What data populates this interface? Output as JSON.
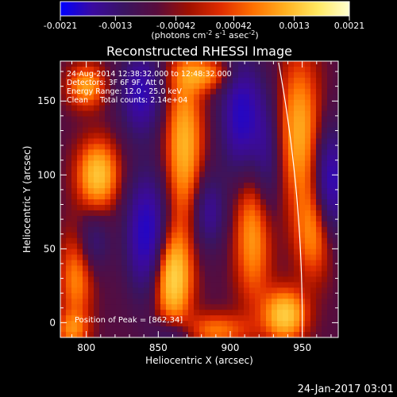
{
  "chart_data": {
    "type": "heatmap",
    "title": "Reconstructed RHESSI Image",
    "xlabel": "Heliocentric X (arcsec)",
    "ylabel": "Heliocentric Y (arcsec)",
    "xlim": [
      782,
      975
    ],
    "ylim": [
      -10,
      177
    ],
    "x_ticks": [
      "800",
      "850",
      "900",
      "950"
    ],
    "y_ticks": [
      "0",
      "50",
      "100",
      "150"
    ],
    "x_tick_values": [
      800,
      850,
      900,
      950
    ],
    "y_tick_values": [
      0,
      50,
      100,
      150
    ],
    "colorbar": {
      "ticks": [
        "-0.0021",
        "-0.0013",
        "-0.00042",
        "0.00042",
        "0.0013",
        "0.0021"
      ],
      "tick_values": [
        -0.0021,
        -0.0013,
        -0.00042,
        0.00042,
        0.0013,
        0.0021
      ],
      "range": [
        -0.0021,
        0.0021
      ],
      "units_label": "(photons cm",
      "units_exp1": "-2",
      "units_mid": " s",
      "units_exp2": "-1",
      "units_tail": " asec",
      "units_exp3": "-2",
      "units_close": ")"
    },
    "info_lines": [
      "24-Aug-2014 12:38:32.000 to 12:48:32.000",
      "Detectors: 3F 6F 9F, Att 0",
      "Energy Range: 12.0 - 25.0 keV",
      "Clean     Total counts: 2.14e+04"
    ],
    "peak_text": "Position of Peak = [862,34]",
    "limb_color": "#ffffff",
    "colormap": [
      "#0000ff",
      "#3a0aa0",
      "#3a1460",
      "#580c3c",
      "#a01000",
      "#e02c00",
      "#ff7000",
      "#ffb020",
      "#ffe860",
      "#ffffd0"
    ],
    "blobs": [
      {
        "x": 860,
        "y": 30,
        "sx": 9,
        "sy": 22,
        "a": 1.0
      },
      {
        "x": 868,
        "y": 120,
        "sx": 9,
        "sy": 36,
        "a": 0.75
      },
      {
        "x": 882,
        "y": 168,
        "sx": 14,
        "sy": 8,
        "a": 0.55
      },
      {
        "x": 808,
        "y": 100,
        "sx": 10,
        "sy": 16,
        "a": 0.85
      },
      {
        "x": 800,
        "y": 160,
        "sx": 9,
        "sy": 10,
        "a": 0.65
      },
      {
        "x": 793,
        "y": 30,
        "sx": 8,
        "sy": 22,
        "a": 0.55
      },
      {
        "x": 790,
        "y": -5,
        "sx": 8,
        "sy": 8,
        "a": 0.45
      },
      {
        "x": 916,
        "y": 60,
        "sx": 9,
        "sy": 32,
        "a": 0.65
      },
      {
        "x": 938,
        "y": 5,
        "sx": 10,
        "sy": 12,
        "a": 0.9
      },
      {
        "x": 948,
        "y": 130,
        "sx": 10,
        "sy": 35,
        "a": 0.7
      },
      {
        "x": 958,
        "y": 60,
        "sx": 9,
        "sy": 22,
        "a": 0.55
      },
      {
        "x": 890,
        "y": -5,
        "sx": 16,
        "sy": 8,
        "a": 0.5
      },
      {
        "x": 838,
        "y": 155,
        "sx": 10,
        "sy": 20,
        "a": -0.75
      },
      {
        "x": 842,
        "y": 60,
        "sx": 10,
        "sy": 28,
        "a": -0.9
      },
      {
        "x": 908,
        "y": 140,
        "sx": 10,
        "sy": 28,
        "a": -0.85
      },
      {
        "x": 885,
        "y": 75,
        "sx": 8,
        "sy": 18,
        "a": -0.55
      },
      {
        "x": 925,
        "y": 110,
        "sx": 7,
        "sy": 30,
        "a": -0.45
      },
      {
        "x": 970,
        "y": 95,
        "sx": 8,
        "sy": 25,
        "a": -0.8
      },
      {
        "x": 805,
        "y": 55,
        "sx": 8,
        "sy": 14,
        "a": -0.4
      },
      {
        "x": 860,
        "y": -8,
        "sx": 10,
        "sy": 8,
        "a": -0.45
      }
    ],
    "limb": {
      "cx": 0,
      "cy": 0,
      "r": 950
    }
  },
  "footer": {
    "timestamp": "24-Jan-2017 03:01"
  }
}
